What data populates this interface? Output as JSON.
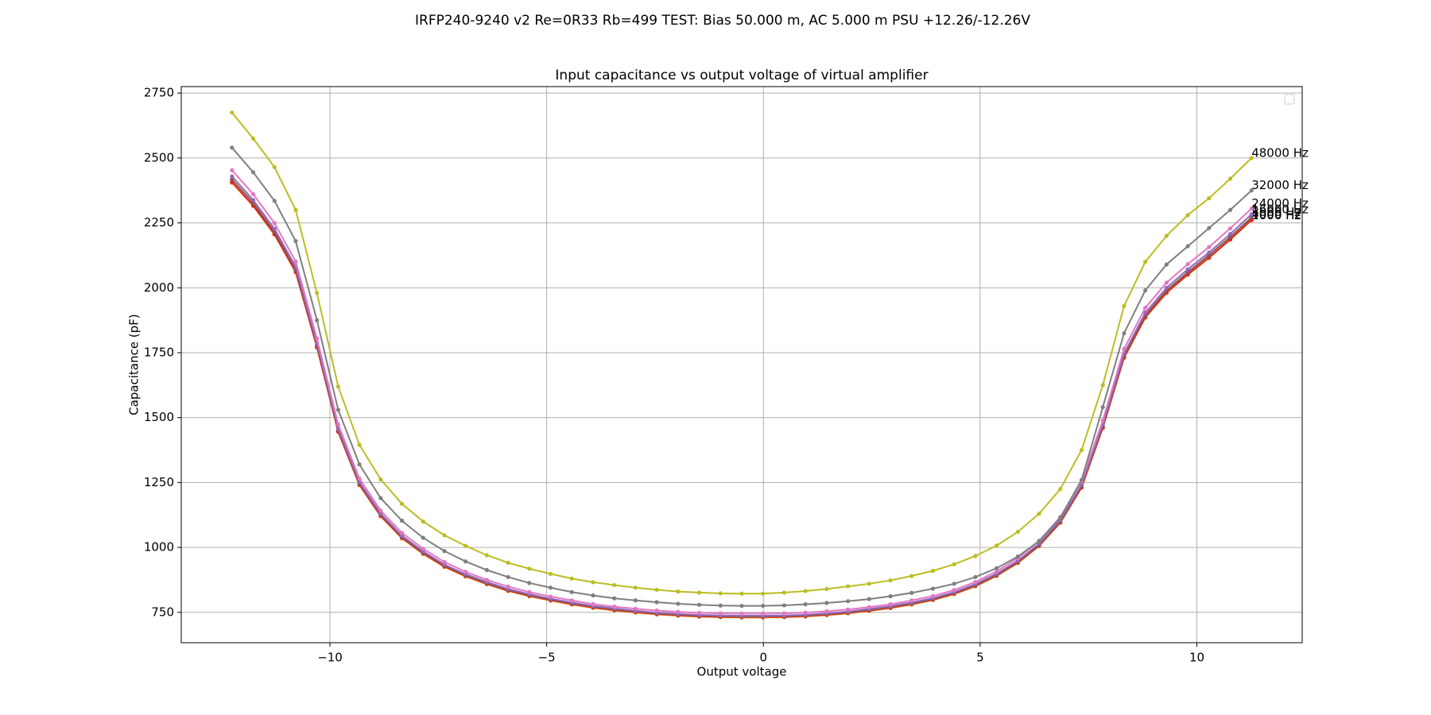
{
  "chart_data": {
    "type": "line",
    "suptitle": "IRFP240-9240 v2 Re=0R33 Rb=499 TEST: Bias 50.000 m, AC 5.000 m PSU +12.26/-12.26V",
    "title": "Input capacitance vs output voltage of virtual amplifier",
    "xlabel": "Output voltage",
    "ylabel": "Capacitance (pF)",
    "grid": true,
    "legend": "upper right",
    "xlim": [
      -13.43,
      12.43
    ],
    "ylim": [
      633,
      2775
    ],
    "xticks": [
      {
        "value": -10,
        "label": "−10"
      },
      {
        "value": -5,
        "label": "−5"
      },
      0,
      5,
      10
    ],
    "yticks": [
      750,
      1000,
      1250,
      1500,
      1750,
      2000,
      2250,
      2500,
      2750
    ],
    "x": [
      -12.26,
      -11.77,
      -11.28,
      -10.79,
      -10.3,
      -9.81,
      -9.32,
      -8.83,
      -8.34,
      -7.85,
      -7.36,
      -6.87,
      -6.38,
      -5.89,
      -5.4,
      -4.91,
      -4.42,
      -3.93,
      -3.44,
      -2.95,
      -2.46,
      -1.97,
      -1.48,
      -0.99,
      -0.5,
      -0.01,
      0.48,
      0.97,
      1.46,
      1.95,
      2.44,
      2.93,
      3.42,
      3.91,
      4.4,
      4.89,
      5.38,
      5.87,
      6.36,
      6.85,
      7.34,
      7.83,
      8.32,
      8.81,
      9.3,
      9.79,
      10.28,
      10.77,
      11.26
    ],
    "series": [
      {
        "name": "1000 Hz",
        "color": "#ff7f0e",
        "values": [
          2405,
          2315,
          2205,
          2060,
          1770,
          1445,
          1240,
          1120,
          1035,
          975,
          925,
          888,
          858,
          832,
          812,
          795,
          780,
          767,
          757,
          749,
          742,
          737,
          733,
          731,
          730,
          730,
          731,
          734,
          739,
          746,
          755,
          766,
          780,
          797,
          820,
          850,
          890,
          940,
          1005,
          1095,
          1230,
          1460,
          1730,
          1885,
          1980,
          2050,
          2115,
          2185,
          2260
        ]
      },
      {
        "name": "4000 Hz",
        "color": "#d62728",
        "values": [
          2407,
          2317,
          2207,
          2062,
          1772,
          1447,
          1242,
          1122,
          1037,
          977,
          927,
          890,
          860,
          834,
          814,
          797,
          782,
          769,
          759,
          751,
          744,
          739,
          735,
          733,
          732,
          732,
          733,
          736,
          741,
          748,
          757,
          768,
          782,
          799,
          822,
          852,
          892,
          942,
          1007,
          1097,
          1232,
          1462,
          1732,
          1887,
          1982,
          2052,
          2117,
          2187,
          2262
        ]
      },
      {
        "name": "8000 Hz",
        "color": "#8c564b",
        "values": [
          2417,
          2327,
          2216,
          2070,
          1779,
          1452,
          1246,
          1126,
          1040,
          980,
          930,
          892,
          862,
          836,
          816,
          799,
          784,
          771,
          761,
          753,
          746,
          741,
          737,
          735,
          734,
          734,
          735,
          738,
          743,
          750,
          759,
          770,
          784,
          801,
          824,
          854,
          894,
          945,
          1010,
          1100,
          1236,
          1467,
          1739,
          1894,
          1990,
          2060,
          2126,
          2196,
          2271
        ]
      },
      {
        "name": "16000 Hz",
        "color": "#9467bd",
        "values": [
          2429,
          2338,
          2227,
          2081,
          1788,
          1459,
          1252,
          1131,
          1045,
          985,
          934,
          897,
          867,
          840,
          820,
          803,
          788,
          775,
          765,
          756,
          749,
          744,
          740,
          738,
          737,
          737,
          738,
          741,
          746,
          753,
          763,
          774,
          788,
          805,
          828,
          859,
          899,
          949,
          1015,
          1106,
          1242,
          1475,
          1747,
          1904,
          2000,
          2071,
          2136,
          2207,
          2283
        ]
      },
      {
        "name": "24000 Hz",
        "color": "#e377c2",
        "values": [
          2453,
          2361,
          2249,
          2101,
          1805,
          1474,
          1265,
          1142,
          1056,
          995,
          944,
          906,
          875,
          849,
          828,
          811,
          796,
          782,
          772,
          764,
          757,
          752,
          748,
          746,
          745,
          745,
          746,
          749,
          754,
          761,
          770,
          781,
          796,
          813,
          836,
          867,
          908,
          959,
          1025,
          1117,
          1255,
          1489,
          1765,
          1923,
          2020,
          2091,
          2157,
          2229,
          2305
        ]
      },
      {
        "name": "32000 Hz",
        "color": "#7f7f7f",
        "values": [
          2540,
          2445,
          2335,
          2180,
          1875,
          1530,
          1320,
          1190,
          1103,
          1037,
          986,
          946,
          913,
          886,
          863,
          845,
          828,
          815,
          804,
          796,
          789,
          783,
          779,
          776,
          775,
          775,
          777,
          781,
          786,
          793,
          801,
          812,
          825,
          841,
          860,
          886,
          920,
          965,
          1025,
          1115,
          1260,
          1540,
          1825,
          1990,
          2090,
          2160,
          2230,
          2300,
          2375
        ]
      },
      {
        "name": "48000 Hz",
        "color": "#bcbd22",
        "values": [
          2675,
          2575,
          2465,
          2300,
          1980,
          1620,
          1395,
          1262,
          1168,
          1100,
          1047,
          1006,
          970,
          941,
          918,
          898,
          880,
          866,
          855,
          845,
          837,
          830,
          826,
          823,
          822,
          822,
          826,
          832,
          840,
          850,
          860,
          873,
          890,
          910,
          935,
          967,
          1007,
          1060,
          1130,
          1225,
          1375,
          1625,
          1930,
          2100,
          2200,
          2280,
          2345,
          2420,
          2500
        ]
      }
    ]
  }
}
